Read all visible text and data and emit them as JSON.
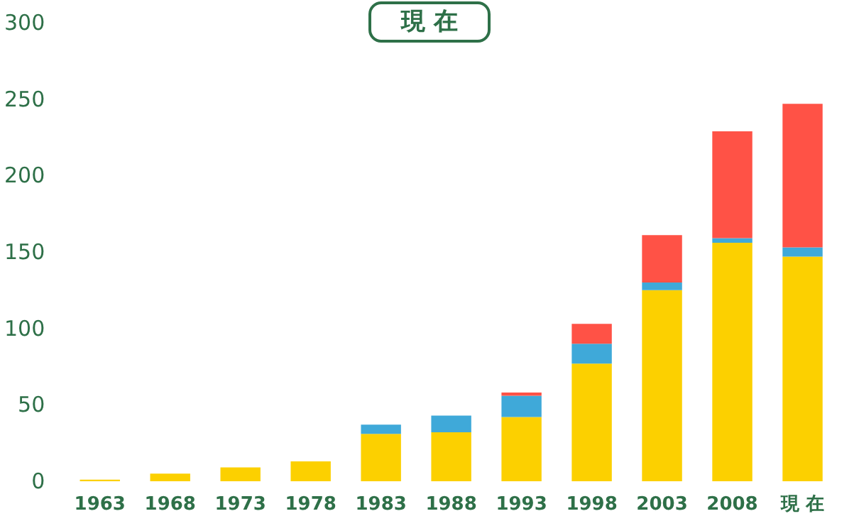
{
  "chart_data": {
    "type": "bar",
    "title": "現 在",
    "stacked": true,
    "categories": [
      "1963",
      "1968",
      "1973",
      "1978",
      "1983",
      "1988",
      "1993",
      "1998",
      "2003",
      "2008",
      "現 在"
    ],
    "series": [
      {
        "color": "#fcd000",
        "values": [
          1,
          5,
          9,
          13,
          31,
          32,
          42,
          77,
          125,
          156,
          147
        ]
      },
      {
        "color": "#3fa9d9",
        "values": [
          0,
          0,
          0,
          0,
          6,
          11,
          14,
          13,
          5,
          3,
          6
        ]
      },
      {
        "color": "#ff5246",
        "values": [
          0,
          0,
          0,
          0,
          0,
          0,
          2,
          13,
          31,
          70,
          94
        ]
      }
    ],
    "ylim": [
      0,
      300
    ],
    "yticks": [
      0,
      50,
      100,
      150,
      200,
      250,
      300
    ],
    "grid": false
  }
}
